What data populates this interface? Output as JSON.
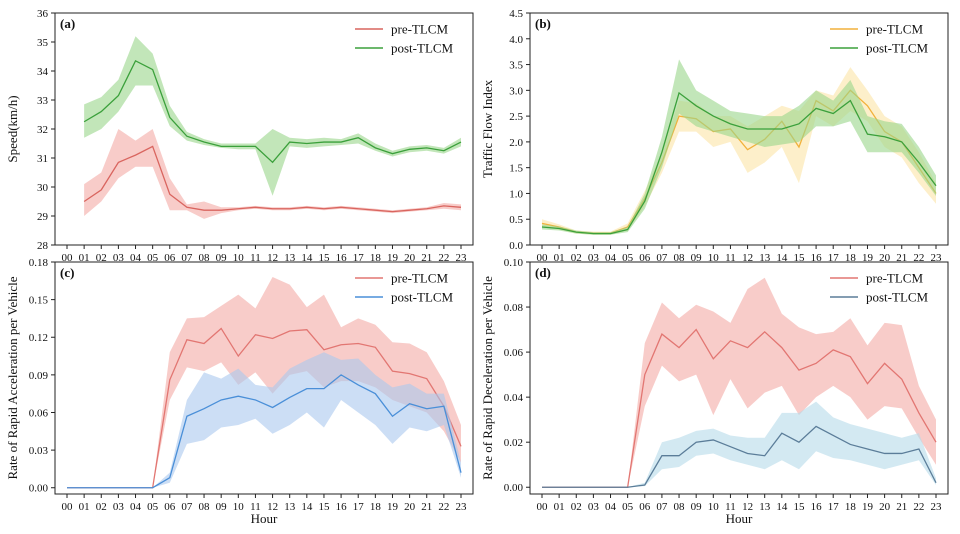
{
  "chart_data": [
    {
      "type": "line",
      "panel_label": "(a)",
      "xlabel": "",
      "ylabel": "Speed(km/h)",
      "categories": [
        "00",
        "01",
        "02",
        "03",
        "04",
        "05",
        "06",
        "07",
        "08",
        "09",
        "10",
        "11",
        "12",
        "13",
        "14",
        "15",
        "16",
        "17",
        "18",
        "19",
        "20",
        "21",
        "22",
        "23"
      ],
      "ylim": [
        28,
        36
      ],
      "yticks": [
        28,
        29,
        30,
        31,
        32,
        33,
        34,
        35,
        36
      ],
      "ytick_labels": [
        "28",
        "29",
        "30",
        "31",
        "32",
        "33",
        "34",
        "35",
        "36"
      ],
      "show_x_tick_labels": true,
      "legend_position": "top-right",
      "series": [
        {
          "name": "pre-TLCM",
          "color": "#d9655f",
          "fill": "#f4aaa5",
          "values": [
            null,
            29.5,
            29.9,
            30.85,
            31.1,
            31.4,
            29.75,
            29.3,
            29.2,
            29.2,
            29.25,
            29.3,
            29.25,
            29.25,
            29.3,
            29.25,
            29.3,
            29.25,
            29.2,
            29.15,
            29.2,
            29.25,
            29.35,
            29.3
          ],
          "lower": [
            null,
            29.0,
            29.5,
            30.3,
            30.7,
            30.7,
            29.2,
            29.2,
            28.9,
            29.1,
            29.2,
            29.25,
            29.2,
            29.2,
            29.25,
            29.2,
            29.25,
            29.2,
            29.15,
            29.1,
            29.15,
            29.2,
            29.25,
            29.2
          ],
          "upper": [
            null,
            30.1,
            30.5,
            32.0,
            31.6,
            32.0,
            30.3,
            29.4,
            29.5,
            29.3,
            29.3,
            29.35,
            29.3,
            29.3,
            29.35,
            29.3,
            29.35,
            29.3,
            29.25,
            29.2,
            29.25,
            29.3,
            29.45,
            29.4
          ]
        },
        {
          "name": "post-TLCM",
          "color": "#3ba03b",
          "fill": "#9ad58a",
          "values": [
            null,
            32.25,
            32.6,
            33.15,
            34.35,
            34.05,
            32.4,
            31.75,
            31.55,
            31.4,
            31.4,
            31.4,
            30.85,
            31.55,
            31.5,
            31.55,
            31.55,
            31.7,
            31.35,
            31.15,
            31.3,
            31.35,
            31.25,
            31.55
          ],
          "lower": [
            null,
            31.7,
            32.0,
            32.6,
            33.5,
            33.5,
            32.1,
            31.6,
            31.45,
            31.35,
            31.3,
            31.3,
            29.7,
            31.4,
            31.35,
            31.4,
            31.45,
            31.5,
            31.25,
            31.05,
            31.2,
            31.25,
            31.15,
            31.4
          ],
          "upper": [
            null,
            32.85,
            33.1,
            33.7,
            35.2,
            34.6,
            32.8,
            31.9,
            31.65,
            31.5,
            31.5,
            31.5,
            32.0,
            31.7,
            31.65,
            31.7,
            31.65,
            31.85,
            31.5,
            31.25,
            31.4,
            31.45,
            31.35,
            31.7
          ]
        }
      ]
    },
    {
      "type": "line",
      "panel_label": "(b)",
      "xlabel": "",
      "ylabel": "Traffic Flow Index",
      "categories": [
        "00",
        "01",
        "02",
        "03",
        "04",
        "05",
        "06",
        "07",
        "08",
        "09",
        "10",
        "11",
        "12",
        "13",
        "14",
        "15",
        "16",
        "17",
        "18",
        "19",
        "20",
        "21",
        "22",
        "23"
      ],
      "ylim": [
        0,
        4.5
      ],
      "yticks": [
        0,
        0.5,
        1,
        1.5,
        2,
        2.5,
        3,
        3.5,
        4,
        4.5
      ],
      "ytick_labels": [
        "0.0",
        "0.5",
        "1.0",
        "1.5",
        "2.0",
        "2.5",
        "3.0",
        "3.5",
        "4.0",
        "4.5"
      ],
      "show_x_tick_labels": true,
      "legend_position": "top-right",
      "series": [
        {
          "name": "pre-TLCM",
          "color": "#f2b13b",
          "fill": "#fbe5a6",
          "values": [
            0.42,
            0.35,
            0.25,
            0.23,
            0.23,
            0.35,
            0.9,
            1.6,
            2.5,
            2.45,
            2.2,
            2.25,
            1.85,
            2.05,
            2.4,
            1.9,
            2.8,
            2.6,
            3.0,
            2.7,
            2.2,
            2.0,
            1.5,
            1.0
          ],
          "lower": [
            0.35,
            0.3,
            0.22,
            0.2,
            0.2,
            0.28,
            0.75,
            1.4,
            2.2,
            2.2,
            1.9,
            2.0,
            1.4,
            1.6,
            1.9,
            1.2,
            2.5,
            2.3,
            2.6,
            2.4,
            1.9,
            1.7,
            1.2,
            0.8
          ],
          "upper": [
            0.5,
            0.4,
            0.28,
            0.26,
            0.26,
            0.42,
            1.05,
            1.8,
            2.8,
            2.75,
            2.5,
            2.5,
            2.3,
            2.5,
            2.7,
            2.6,
            3.0,
            2.9,
            3.45,
            3.0,
            2.5,
            2.3,
            1.8,
            1.2
          ]
        },
        {
          "name": "post-TLCM",
          "color": "#3ba03b",
          "fill": "#9ad58a",
          "values": [
            0.35,
            0.32,
            0.25,
            0.22,
            0.22,
            0.3,
            0.85,
            1.8,
            2.95,
            2.7,
            2.5,
            2.35,
            2.25,
            2.25,
            2.25,
            2.35,
            2.65,
            2.55,
            2.8,
            2.15,
            2.1,
            2.0,
            1.6,
            1.15
          ],
          "lower": [
            0.3,
            0.28,
            0.22,
            0.2,
            0.2,
            0.25,
            0.7,
            1.5,
            2.55,
            2.3,
            2.2,
            2.1,
            2.0,
            1.9,
            1.95,
            2.0,
            2.3,
            2.3,
            2.4,
            1.8,
            1.8,
            1.8,
            1.4,
            0.95
          ],
          "upper": [
            0.4,
            0.36,
            0.28,
            0.25,
            0.25,
            0.35,
            1.0,
            2.1,
            3.6,
            3.0,
            2.8,
            2.6,
            2.55,
            2.5,
            2.5,
            2.7,
            3.0,
            2.8,
            3.2,
            2.5,
            2.4,
            2.35,
            1.9,
            1.35
          ]
        }
      ]
    },
    {
      "type": "line",
      "panel_label": "(c)",
      "xlabel": "Hour",
      "ylabel": "Rate of Rapid Acceleration per Vehicle",
      "categories": [
        "00",
        "01",
        "02",
        "03",
        "04",
        "05",
        "06",
        "07",
        "08",
        "09",
        "10",
        "11",
        "12",
        "13",
        "14",
        "15",
        "16",
        "17",
        "18",
        "19",
        "20",
        "21",
        "22",
        "23"
      ],
      "ylim": [
        -0.005,
        0.18
      ],
      "yticks": [
        0,
        0.03,
        0.06,
        0.09,
        0.12,
        0.15,
        0.18
      ],
      "ytick_labels": [
        "0.00",
        "0.03",
        "0.06",
        "0.09",
        "0.12",
        "0.15",
        "0.18"
      ],
      "show_x_tick_labels": true,
      "legend_position": "top-right",
      "series": [
        {
          "name": "pre-TLCM",
          "color": "#e27672",
          "fill": "#f4aaa5",
          "values": [
            0,
            0,
            0,
            0,
            0,
            0,
            0.086,
            0.118,
            0.115,
            0.127,
            0.105,
            0.122,
            0.119,
            0.125,
            0.126,
            0.11,
            0.114,
            0.115,
            0.112,
            0.093,
            0.091,
            0.087,
            0.065,
            0.033
          ],
          "lower": [
            0,
            0,
            0,
            0,
            0,
            0,
            0.07,
            0.096,
            0.093,
            0.1,
            0.082,
            0.092,
            0.075,
            0.09,
            0.093,
            0.08,
            0.085,
            0.085,
            0.08,
            0.07,
            0.065,
            0.06,
            0.045,
            0.02
          ],
          "upper": [
            0,
            0,
            0,
            0,
            0,
            0,
            0.108,
            0.135,
            0.136,
            0.145,
            0.154,
            0.143,
            0.168,
            0.162,
            0.144,
            0.154,
            0.128,
            0.135,
            0.13,
            0.116,
            0.115,
            0.108,
            0.085,
            0.05
          ]
        },
        {
          "name": "post-TLCM",
          "color": "#4a8fd8",
          "fill": "#aac8ee",
          "values": [
            0,
            0,
            0,
            0,
            0,
            0,
            0.008,
            0.057,
            0.063,
            0.07,
            0.073,
            0.07,
            0.064,
            0.072,
            0.079,
            0.079,
            0.09,
            0.082,
            0.075,
            0.057,
            0.067,
            0.063,
            0.065,
            0.012
          ],
          "lower": [
            0,
            0,
            0,
            0,
            0,
            0,
            0.004,
            0.035,
            0.038,
            0.048,
            0.05,
            0.055,
            0.043,
            0.05,
            0.06,
            0.048,
            0.07,
            0.06,
            0.05,
            0.035,
            0.048,
            0.045,
            0.05,
            0.008
          ],
          "upper": [
            0,
            0,
            0,
            0,
            0,
            0,
            0.012,
            0.07,
            0.092,
            0.087,
            0.095,
            0.082,
            0.08,
            0.095,
            0.102,
            0.108,
            0.102,
            0.103,
            0.09,
            0.08,
            0.083,
            0.075,
            0.075,
            0.02
          ]
        }
      ]
    },
    {
      "type": "line",
      "panel_label": "(d)",
      "xlabel": "Hour",
      "ylabel": "Rate of Rapid Deceleration per Vehicle",
      "categories": [
        "00",
        "01",
        "02",
        "03",
        "04",
        "05",
        "06",
        "07",
        "08",
        "09",
        "10",
        "11",
        "12",
        "13",
        "14",
        "15",
        "16",
        "17",
        "18",
        "19",
        "20",
        "21",
        "22",
        "23"
      ],
      "ylim": [
        -0.003,
        0.1
      ],
      "yticks": [
        0,
        0.02,
        0.04,
        0.06,
        0.08,
        0.1
      ],
      "ytick_labels": [
        "0.00",
        "0.02",
        "0.04",
        "0.06",
        "0.08",
        "0.10"
      ],
      "show_x_tick_labels": true,
      "legend_position": "top-right",
      "series": [
        {
          "name": "pre-TLCM",
          "color": "#e27672",
          "fill": "#f4aaa5",
          "values": [
            0,
            0,
            0,
            0,
            0,
            0,
            0.05,
            0.068,
            0.062,
            0.07,
            0.057,
            0.065,
            0.062,
            0.069,
            0.062,
            0.052,
            0.055,
            0.061,
            0.058,
            0.046,
            0.055,
            0.048,
            0.033,
            0.02
          ],
          "lower": [
            0,
            0,
            0,
            0,
            0,
            0,
            0.036,
            0.054,
            0.047,
            0.05,
            0.032,
            0.048,
            0.035,
            0.042,
            0.045,
            0.032,
            0.04,
            0.045,
            0.04,
            0.03,
            0.036,
            0.035,
            0.022,
            0.01
          ],
          "upper": [
            0,
            0,
            0,
            0,
            0,
            0,
            0.064,
            0.082,
            0.075,
            0.081,
            0.078,
            0.073,
            0.088,
            0.093,
            0.077,
            0.071,
            0.068,
            0.069,
            0.075,
            0.063,
            0.073,
            0.072,
            0.045,
            0.03
          ]
        },
        {
          "name": "post-TLCM",
          "color": "#5b7d99",
          "fill": "#b6dbea",
          "values": [
            0,
            0,
            0,
            0,
            0,
            0,
            0.001,
            0.014,
            0.014,
            0.02,
            0.021,
            0.018,
            0.015,
            0.014,
            0.024,
            0.02,
            0.027,
            0.023,
            0.019,
            0.017,
            0.015,
            0.015,
            0.017,
            0.002
          ],
          "lower": [
            0,
            0,
            0,
            0,
            0,
            0,
            0.0005,
            0.008,
            0.009,
            0.014,
            0.015,
            0.012,
            0.01,
            0.008,
            0.012,
            0.008,
            0.016,
            0.013,
            0.012,
            0.01,
            0.008,
            0.01,
            0.012,
            0.001
          ],
          "upper": [
            0,
            0,
            0,
            0,
            0,
            0,
            0.002,
            0.02,
            0.022,
            0.025,
            0.026,
            0.023,
            0.022,
            0.022,
            0.033,
            0.033,
            0.038,
            0.031,
            0.028,
            0.026,
            0.024,
            0.022,
            0.024,
            0.004
          ]
        }
      ]
    }
  ]
}
